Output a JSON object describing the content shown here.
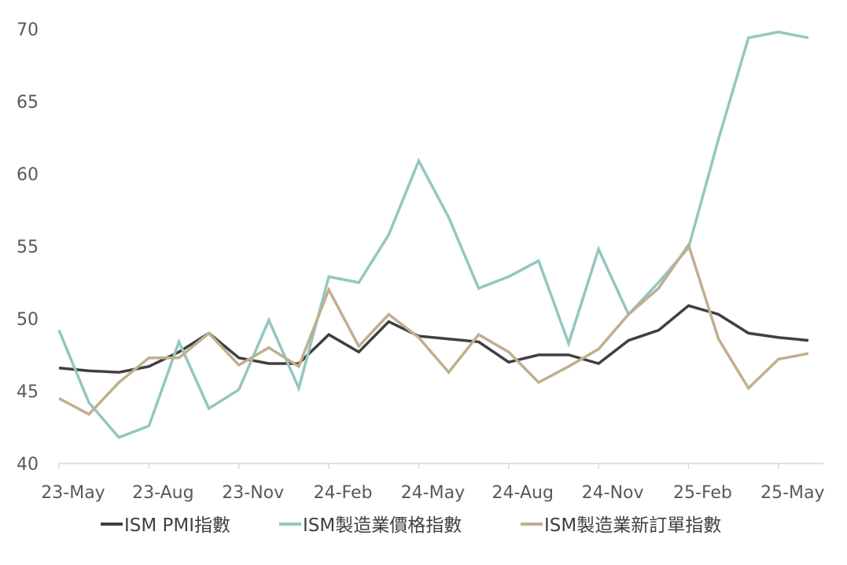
{
  "chart_data": {
    "type": "line",
    "x": [
      "23-May",
      "23-Jun",
      "23-Jul",
      "23-Aug",
      "23-Sep",
      "23-Oct",
      "23-Nov",
      "23-Dec",
      "24-Jan",
      "24-Feb",
      "24-Mar",
      "24-Apr",
      "24-May",
      "24-Jun",
      "24-Jul",
      "24-Aug",
      "24-Sep",
      "24-Oct",
      "24-Nov",
      "24-Dec",
      "25-Jan",
      "25-Feb",
      "25-Mar",
      "25-Apr",
      "25-May",
      "25-Jun"
    ],
    "x_tick_labels": [
      "23-May",
      "23-Aug",
      "23-Nov",
      "24-Feb",
      "24-May",
      "24-Aug",
      "24-Nov",
      "25-Feb",
      "25-May"
    ],
    "y_tick_labels": [
      "40",
      "45",
      "50",
      "55",
      "60",
      "65",
      "70"
    ],
    "ylim": [
      40,
      70
    ],
    "grid": false,
    "legend_position": "bottom",
    "series": [
      {
        "name": "ISM PMI指數",
        "color": "#404040",
        "values": [
          46.6,
          46.4,
          46.3,
          46.7,
          47.7,
          49.0,
          47.3,
          46.9,
          46.9,
          48.9,
          47.7,
          49.8,
          48.8,
          48.6,
          48.4,
          47.0,
          47.5,
          47.5,
          46.9,
          48.5,
          49.2,
          50.9,
          50.3,
          49.0,
          48.7,
          48.5
        ]
      },
      {
        "name": "ISM製造業價格指數",
        "color": "#93C7C0",
        "values": [
          49.2,
          44.2,
          41.8,
          42.6,
          48.4,
          43.8,
          45.1,
          49.9,
          45.2,
          52.9,
          52.5,
          55.8,
          60.9,
          57.0,
          52.1,
          52.9,
          54.0,
          48.3,
          54.8,
          50.3,
          52.5,
          54.9,
          62.4,
          69.4,
          69.8,
          69.4
        ]
      },
      {
        "name": "ISM製造業新訂單指數",
        "color": "#C0AF8F",
        "values": [
          44.5,
          43.4,
          45.6,
          47.3,
          47.3,
          49.0,
          46.8,
          48.0,
          46.7,
          52.0,
          48.1,
          50.3,
          48.7,
          46.3,
          48.9,
          47.7,
          45.6,
          46.7,
          47.9,
          50.3,
          52.1,
          55.1,
          48.6,
          45.2,
          47.2,
          47.6
        ]
      }
    ]
  }
}
